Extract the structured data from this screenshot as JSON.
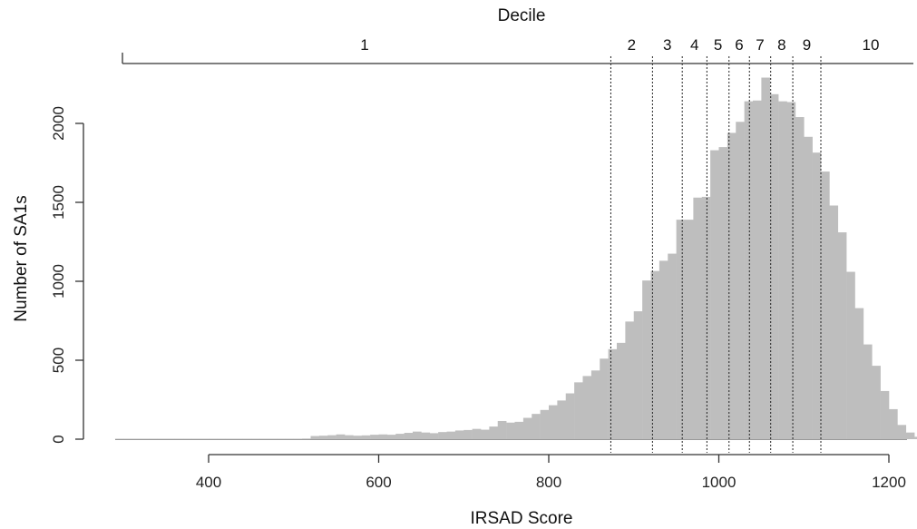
{
  "chart_data": {
    "type": "bar",
    "title": "",
    "xlabel": "IRSAD Score",
    "ylabel": "Number of SA1s",
    "top_axis_label": "Decile",
    "xlim": [
      290,
      1240
    ],
    "ylim": [
      0,
      2000
    ],
    "x_ticks": [
      400,
      600,
      800,
      1000,
      1200
    ],
    "y_ticks": [
      0,
      500,
      1000,
      1500,
      2000
    ],
    "bin_width": 10,
    "bin_start": 290,
    "counts": [
      3,
      3,
      3,
      3,
      3,
      3,
      3,
      3,
      3,
      3,
      3,
      3,
      3,
      3,
      3,
      3,
      3,
      3,
      3,
      3,
      3,
      3,
      4,
      20,
      22,
      25,
      30,
      25,
      22,
      24,
      28,
      30,
      28,
      34,
      40,
      48,
      42,
      38,
      45,
      48,
      55,
      58,
      65,
      60,
      80,
      115,
      105,
      110,
      135,
      160,
      185,
      215,
      245,
      290,
      360,
      400,
      435,
      510,
      570,
      610,
      745,
      810,
      1005,
      1065,
      1130,
      1175,
      1390,
      1390,
      1530,
      1535,
      1830,
      1850,
      1940,
      2010,
      2140,
      2145,
      2290,
      2185,
      2140,
      2135,
      2040,
      1915,
      1815,
      1695,
      1480,
      1310,
      1060,
      830,
      600,
      465,
      305,
      190,
      90,
      42,
      15
    ],
    "decile_cutoffs": [
      873,
      922,
      957,
      986,
      1012,
      1036,
      1061,
      1087,
      1120
    ],
    "decile_labels": [
      "1",
      "2",
      "3",
      "4",
      "5",
      "6",
      "7",
      "8",
      "9",
      "10"
    ],
    "bar_color": "#bebebe"
  }
}
